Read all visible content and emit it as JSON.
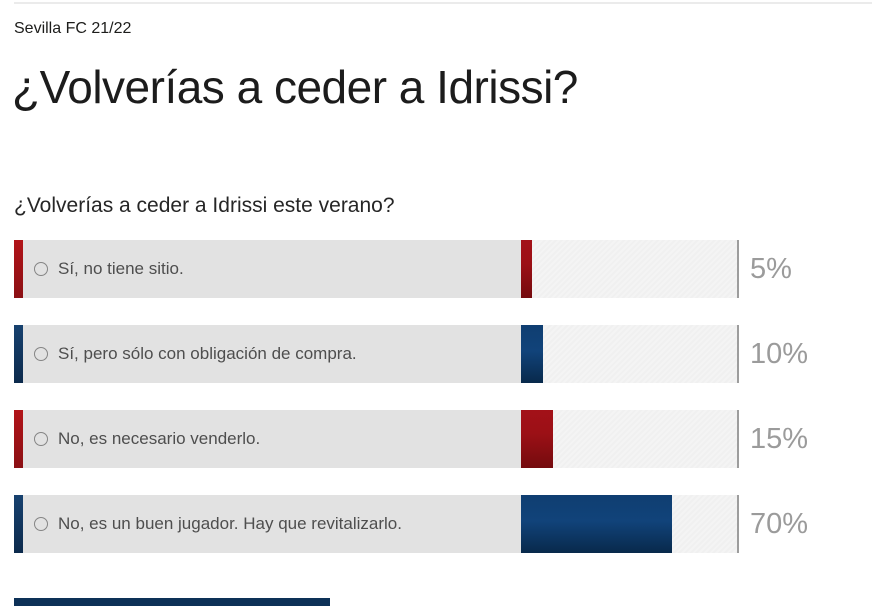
{
  "header": {
    "category": "Sevilla FC 21/22",
    "title": "¿Volverías a ceder a Idrissi?"
  },
  "poll": {
    "question": "¿Volverías a ceder a Idrissi este verano?",
    "options": [
      {
        "label": "Sí, no tiene sitio.",
        "percent": 5,
        "percent_label": "5%",
        "color": "red"
      },
      {
        "label": "Sí, pero sólo con obligación de compra.",
        "percent": 10,
        "percent_label": "10%",
        "color": "blue"
      },
      {
        "label": "No, es necesario venderlo.",
        "percent": 15,
        "percent_label": "15%",
        "color": "red"
      },
      {
        "label": "No, es un buen jugador. Hay que revitalizarlo.",
        "percent": 70,
        "percent_label": "70%",
        "color": "blue"
      }
    ]
  },
  "colors": {
    "accent_red": "#a31118",
    "accent_blue": "#0f3e71",
    "label_panel_bg": "#e2e2e2",
    "track_bg": "#f4f4f4",
    "divider": "#9d9d9d",
    "percent_text": "#9b9b9b",
    "bottom_sliver_navy": "#0d3157"
  },
  "chart_data": {
    "type": "bar",
    "orientation": "horizontal",
    "title": "¿Volverías a ceder a Idrissi este verano?",
    "categories": [
      "Sí, no tiene sitio.",
      "Sí, pero sólo con obligación de compra.",
      "No, es necesario venderlo.",
      "No, es un buen jugador. Hay que revitalizarlo."
    ],
    "values": [
      5,
      10,
      15,
      70
    ],
    "value_labels": [
      "5%",
      "10%",
      "15%",
      "70%"
    ],
    "bar_colors": [
      "#9c1016",
      "#0f3e71",
      "#9c1016",
      "#0f3e71"
    ],
    "xlim": [
      0,
      100
    ],
    "grid": false,
    "legend": false
  }
}
